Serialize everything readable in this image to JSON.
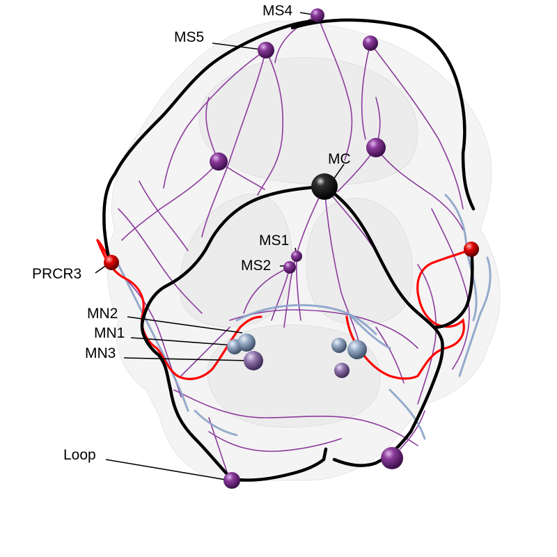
{
  "colors": {
    "background": "#ffffff",
    "brain_mesh": "#d9d9d9",
    "black_tract": "#000000",
    "red_neuron": "#ff0000",
    "purple_neurites": "#8b3a9c",
    "blue_neurites": "#8aa2c8",
    "purple_soma": "#6a2a7a",
    "lavender_soma": "#8a6aa8",
    "blue_soma": "#8fa3bf",
    "red_soma": "#d00000",
    "black_soma": "#000000"
  },
  "labels": {
    "ms4": "MS4",
    "ms5": "MS5",
    "mc": "MC",
    "ms1": "MS1",
    "ms2": "MS2",
    "prcr3": "PRCR3",
    "mn2": "MN2",
    "mn1": "MN1",
    "mn3": "MN3",
    "loop": "Loop"
  },
  "somas": [
    {
      "name": "ms4-soma",
      "color": "purple_soma"
    },
    {
      "name": "ms5-soma",
      "color": "purple_soma"
    },
    {
      "name": "ms-unlabeled-top-right-soma",
      "color": "purple_soma"
    },
    {
      "name": "ms-unlabeled-left-soma",
      "color": "purple_soma"
    },
    {
      "name": "ms-unlabeled-right-soma",
      "color": "purple_soma"
    },
    {
      "name": "mc-soma",
      "color": "black_soma"
    },
    {
      "name": "ms1-soma",
      "color": "purple_soma"
    },
    {
      "name": "ms2-soma",
      "color": "purple_soma"
    },
    {
      "name": "prcr3-soma",
      "color": "red_soma"
    },
    {
      "name": "prcr-right-soma",
      "color": "red_soma"
    },
    {
      "name": "mn1-soma",
      "color": "blue_soma"
    },
    {
      "name": "mn2-soma",
      "color": "blue_soma"
    },
    {
      "name": "mn3-soma",
      "color": "lavender_soma"
    },
    {
      "name": "mn1-right-soma",
      "color": "blue_soma"
    },
    {
      "name": "mn2-right-soma",
      "color": "blue_soma"
    },
    {
      "name": "mn3-right-soma",
      "color": "lavender_soma"
    },
    {
      "name": "loop-soma",
      "color": "purple_soma"
    },
    {
      "name": "loop-right-soma",
      "color": "purple_soma"
    }
  ]
}
